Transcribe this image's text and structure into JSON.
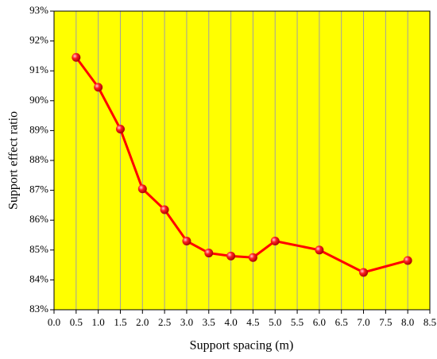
{
  "chart_data": {
    "type": "line",
    "xlabel": "Support spacing (m)",
    "ylabel": "Support effect ratio",
    "x": [
      0.5,
      1.0,
      1.5,
      2.0,
      2.5,
      3.0,
      3.5,
      4.0,
      4.5,
      5.0,
      6.0,
      7.0,
      8.0
    ],
    "series": [
      {
        "color": "#ff0000",
        "values": [
          91.45,
          90.45,
          89.05,
          87.05,
          86.35,
          85.3,
          84.9,
          84.8,
          84.75,
          85.3,
          85.0,
          84.25,
          84.65
        ]
      }
    ],
    "xlim": [
      0,
      8.5
    ],
    "xticks": [
      {
        "value": 0,
        "label": "0.0"
      },
      0.5,
      {
        "value": 1,
        "label": "1.0"
      },
      1.5,
      {
        "value": 2,
        "label": "2.0"
      },
      2.5,
      {
        "value": 3,
        "label": "3.0"
      },
      3.5,
      {
        "value": 4,
        "label": "4.0"
      },
      4.5,
      {
        "value": 5,
        "label": "5.0"
      },
      5.5,
      {
        "value": 6,
        "label": "6.0"
      },
      6.5,
      {
        "value": 7,
        "label": "7.0"
      },
      7.5,
      {
        "value": 8,
        "label": "8.0"
      },
      8.5
    ],
    "ylim": [
      83,
      93
    ],
    "yticks": [
      {
        "value": 83,
        "label": "83%"
      },
      {
        "value": 84,
        "label": "84%"
      },
      {
        "value": 85,
        "label": "85%"
      },
      {
        "value": 86,
        "label": "86%"
      },
      {
        "value": 87,
        "label": "87%"
      },
      {
        "value": 88,
        "label": "88%"
      },
      {
        "value": 89,
        "label": "89%"
      },
      {
        "value": 90,
        "label": "90%"
      },
      {
        "value": 91,
        "label": "91%"
      },
      {
        "value": 92,
        "label": "92%"
      },
      {
        "value": 93,
        "label": "93%"
      }
    ],
    "grid": "x",
    "plot_background": "#ffff00"
  }
}
